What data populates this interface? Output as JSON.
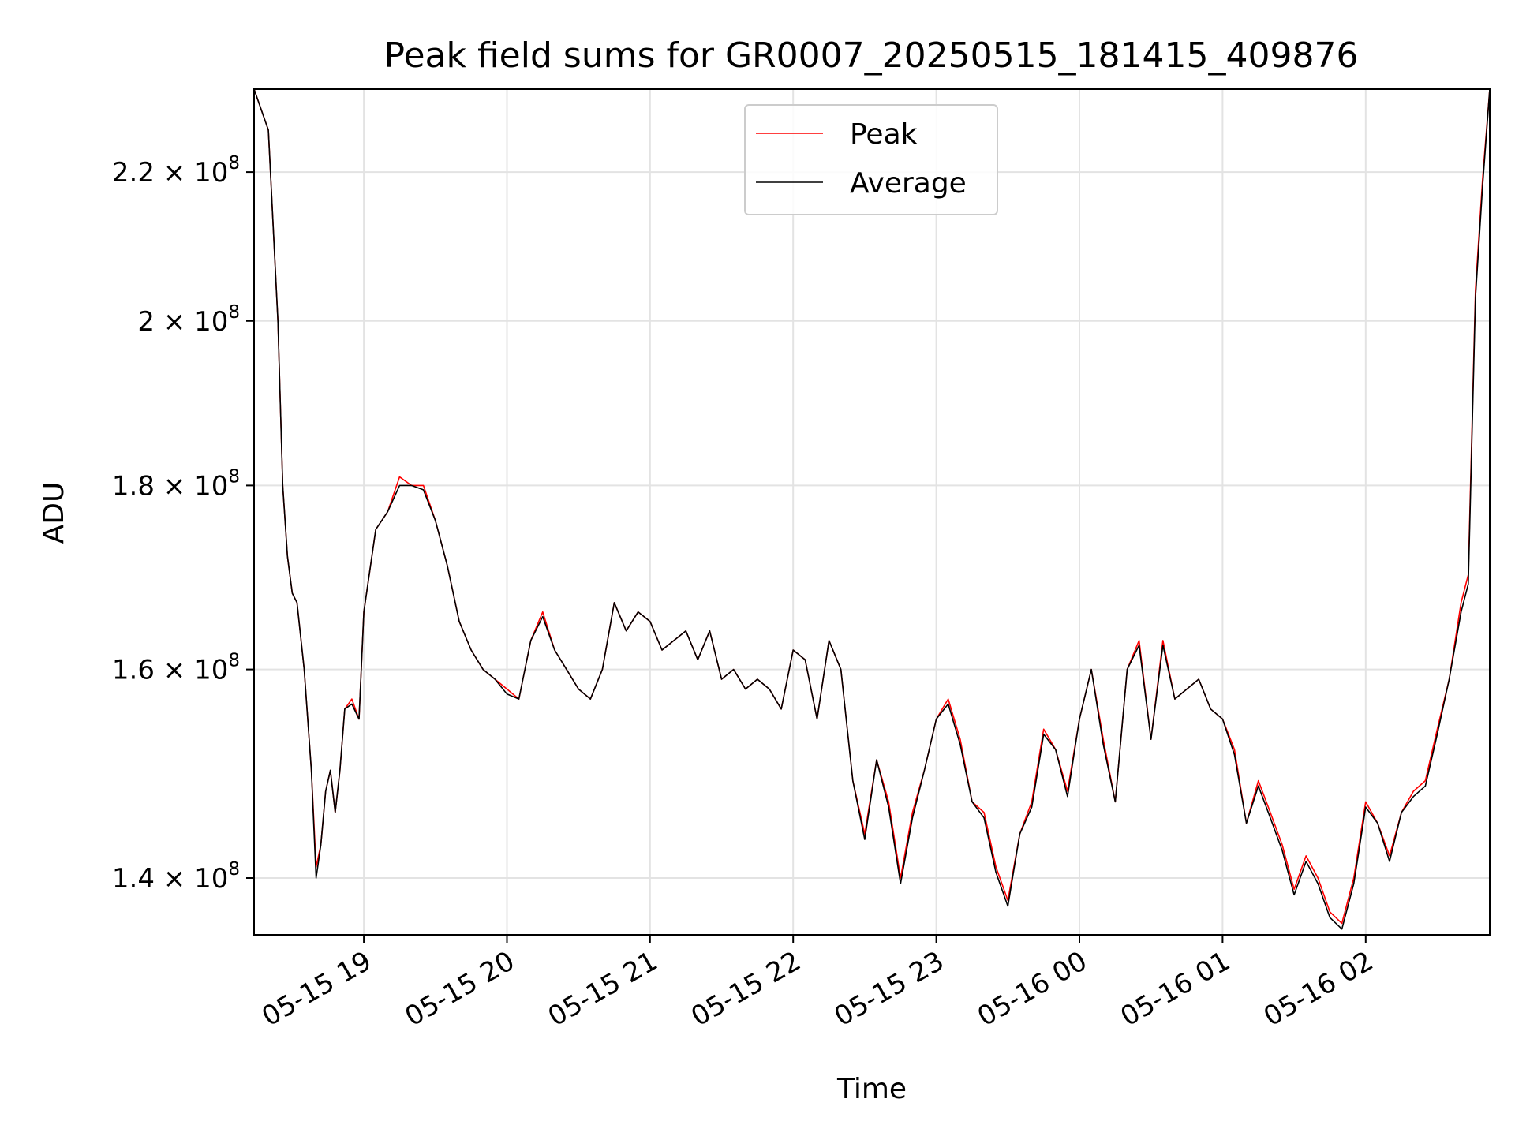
{
  "chart_data": {
    "type": "line",
    "title": "Peak field sums for GR0007_20250515_181415_409876",
    "xlabel": "Time",
    "ylabel": "ADU",
    "y_scale": "log",
    "xlim": [
      "2025-05-15 18:14",
      "2025-05-16 02:52"
    ],
    "ylim": [
      135000000,
      232000000
    ],
    "grid": true,
    "legend_position": "top-center",
    "x_ticks": [
      {
        "t": "2025-05-15 19:00",
        "label": "05-15 19"
      },
      {
        "t": "2025-05-15 20:00",
        "label": "05-15 20"
      },
      {
        "t": "2025-05-15 21:00",
        "label": "05-15 21"
      },
      {
        "t": "2025-05-15 22:00",
        "label": "05-15 22"
      },
      {
        "t": "2025-05-15 23:00",
        "label": "05-15 23"
      },
      {
        "t": "2025-05-16 00:00",
        "label": "05-16 00"
      },
      {
        "t": "2025-05-16 01:00",
        "label": "05-16 01"
      },
      {
        "t": "2025-05-16 02:00",
        "label": "05-16 02"
      }
    ],
    "y_ticks": [
      {
        "value": 140000000,
        "mantissa": "1.4",
        "exponent": "8"
      },
      {
        "value": 160000000,
        "mantissa": "1.6",
        "exponent": "8"
      },
      {
        "value": 180000000,
        "mantissa": "1.8",
        "exponent": "8"
      },
      {
        "value": 200000000,
        "mantissa": "2",
        "exponent": "8"
      },
      {
        "value": 220000000,
        "mantissa": "2.2",
        "exponent": "8"
      }
    ],
    "x": [
      "2025-05-15 18:14",
      "2025-05-15 18:20",
      "2025-05-15 18:24",
      "2025-05-15 18:26",
      "2025-05-15 18:28",
      "2025-05-15 18:30",
      "2025-05-15 18:32",
      "2025-05-15 18:35",
      "2025-05-15 18:38",
      "2025-05-15 18:40",
      "2025-05-15 18:42",
      "2025-05-15 18:44",
      "2025-05-15 18:46",
      "2025-05-15 18:48",
      "2025-05-15 18:50",
      "2025-05-15 18:52",
      "2025-05-15 18:55",
      "2025-05-15 18:58",
      "2025-05-15 19:00",
      "2025-05-15 19:05",
      "2025-05-15 19:10",
      "2025-05-15 19:15",
      "2025-05-15 19:20",
      "2025-05-15 19:25",
      "2025-05-15 19:30",
      "2025-05-15 19:35",
      "2025-05-15 19:40",
      "2025-05-15 19:45",
      "2025-05-15 19:50",
      "2025-05-15 19:55",
      "2025-05-15 20:00",
      "2025-05-15 20:05",
      "2025-05-15 20:10",
      "2025-05-15 20:15",
      "2025-05-15 20:20",
      "2025-05-15 20:25",
      "2025-05-15 20:30",
      "2025-05-15 20:35",
      "2025-05-15 20:40",
      "2025-05-15 20:45",
      "2025-05-15 20:50",
      "2025-05-15 20:55",
      "2025-05-15 21:00",
      "2025-05-15 21:05",
      "2025-05-15 21:10",
      "2025-05-15 21:15",
      "2025-05-15 21:20",
      "2025-05-15 21:25",
      "2025-05-15 21:30",
      "2025-05-15 21:35",
      "2025-05-15 21:40",
      "2025-05-15 21:45",
      "2025-05-15 21:50",
      "2025-05-15 21:55",
      "2025-05-15 22:00",
      "2025-05-15 22:05",
      "2025-05-15 22:10",
      "2025-05-15 22:15",
      "2025-05-15 22:20",
      "2025-05-15 22:25",
      "2025-05-15 22:30",
      "2025-05-15 22:35",
      "2025-05-15 22:40",
      "2025-05-15 22:45",
      "2025-05-15 22:50",
      "2025-05-15 22:55",
      "2025-05-15 23:00",
      "2025-05-15 23:05",
      "2025-05-15 23:10",
      "2025-05-15 23:15",
      "2025-05-15 23:20",
      "2025-05-15 23:25",
      "2025-05-15 23:30",
      "2025-05-15 23:35",
      "2025-05-15 23:40",
      "2025-05-15 23:45",
      "2025-05-15 23:50",
      "2025-05-15 23:55",
      "2025-05-16 00:00",
      "2025-05-16 00:05",
      "2025-05-16 00:10",
      "2025-05-16 00:15",
      "2025-05-16 00:20",
      "2025-05-16 00:25",
      "2025-05-16 00:30",
      "2025-05-16 00:35",
      "2025-05-16 00:40",
      "2025-05-16 00:45",
      "2025-05-16 00:50",
      "2025-05-16 00:55",
      "2025-05-16 01:00",
      "2025-05-16 01:05",
      "2025-05-16 01:10",
      "2025-05-16 01:15",
      "2025-05-16 01:20",
      "2025-05-16 01:25",
      "2025-05-16 01:30",
      "2025-05-16 01:35",
      "2025-05-16 01:40",
      "2025-05-16 01:45",
      "2025-05-16 01:50",
      "2025-05-16 01:55",
      "2025-05-16 02:00",
      "2025-05-16 02:05",
      "2025-05-16 02:10",
      "2025-05-16 02:15",
      "2025-05-16 02:20",
      "2025-05-16 02:25",
      "2025-05-16 02:30",
      "2025-05-16 02:35",
      "2025-05-16 02:40",
      "2025-05-16 02:43",
      "2025-05-16 02:46",
      "2025-05-16 02:49",
      "2025-05-16 02:52"
    ],
    "series": [
      {
        "name": "Peak",
        "color": "#ff0000",
        "values": [
          232000000,
          226000000,
          200000000,
          180000000,
          172000000,
          168000000,
          167000000,
          160000000,
          150000000,
          141000000,
          143000000,
          148000000,
          150000000,
          146000000,
          150000000,
          156000000,
          157000000,
          155000000,
          166000000,
          175000000,
          177000000,
          181000000,
          180000000,
          180000000,
          176000000,
          171000000,
          165000000,
          162000000,
          160000000,
          159000000,
          158000000,
          157000000,
          163000000,
          166000000,
          162000000,
          160000000,
          158000000,
          157000000,
          160000000,
          167000000,
          164000000,
          166000000,
          165000000,
          162000000,
          163000000,
          164000000,
          161000000,
          164000000,
          159000000,
          160000000,
          158000000,
          159000000,
          158000000,
          156000000,
          162000000,
          161000000,
          155000000,
          163000000,
          160000000,
          149000000,
          144000000,
          151000000,
          147000000,
          140000000,
          146000000,
          150000000,
          155000000,
          157000000,
          153000000,
          147000000,
          146000000,
          141000000,
          138000000,
          144000000,
          147000000,
          154000000,
          152000000,
          148000000,
          155000000,
          160000000,
          153000000,
          147000000,
          160000000,
          163000000,
          153000000,
          163000000,
          157000000,
          158000000,
          159000000,
          156000000,
          155000000,
          152000000,
          145000000,
          149000000,
          146000000,
          143000000,
          139000000,
          142000000,
          140000000,
          137000000,
          136000000,
          140000000,
          147000000,
          145000000,
          142000000,
          146000000,
          148000000,
          149000000,
          154000000,
          159000000,
          167000000,
          170000000,
          204000000,
          219000000,
          232000000
        ]
      },
      {
        "name": "Average",
        "color": "#000000",
        "values": [
          232000000,
          226000000,
          200000000,
          180000000,
          172000000,
          168000000,
          167000000,
          160000000,
          150000000,
          140000000,
          143000000,
          148000000,
          150000000,
          146000000,
          150000000,
          156000000,
          156500000,
          155000000,
          166000000,
          175000000,
          177000000,
          180000000,
          180000000,
          179500000,
          176000000,
          171000000,
          165000000,
          162000000,
          160000000,
          159000000,
          157500000,
          157000000,
          163000000,
          165500000,
          162000000,
          160000000,
          158000000,
          157000000,
          160000000,
          167000000,
          164000000,
          166000000,
          165000000,
          162000000,
          163000000,
          164000000,
          161000000,
          164000000,
          159000000,
          160000000,
          158000000,
          159000000,
          158000000,
          156000000,
          162000000,
          161000000,
          155000000,
          163000000,
          160000000,
          149000000,
          143500000,
          151000000,
          146500000,
          139500000,
          145500000,
          150000000,
          155000000,
          156500000,
          152500000,
          147000000,
          145500000,
          140500000,
          137500000,
          144000000,
          146500000,
          153500000,
          152000000,
          147500000,
          155000000,
          160000000,
          152500000,
          147000000,
          160000000,
          162500000,
          153000000,
          162500000,
          157000000,
          158000000,
          159000000,
          156000000,
          155000000,
          151500000,
          145000000,
          148500000,
          145500000,
          142500000,
          138500000,
          141500000,
          139500000,
          136500000,
          135500000,
          139500000,
          146500000,
          145000000,
          141500000,
          146000000,
          147500000,
          148500000,
          153500000,
          159000000,
          166000000,
          169000000,
          203000000,
          218000000,
          232000000
        ]
      }
    ]
  }
}
